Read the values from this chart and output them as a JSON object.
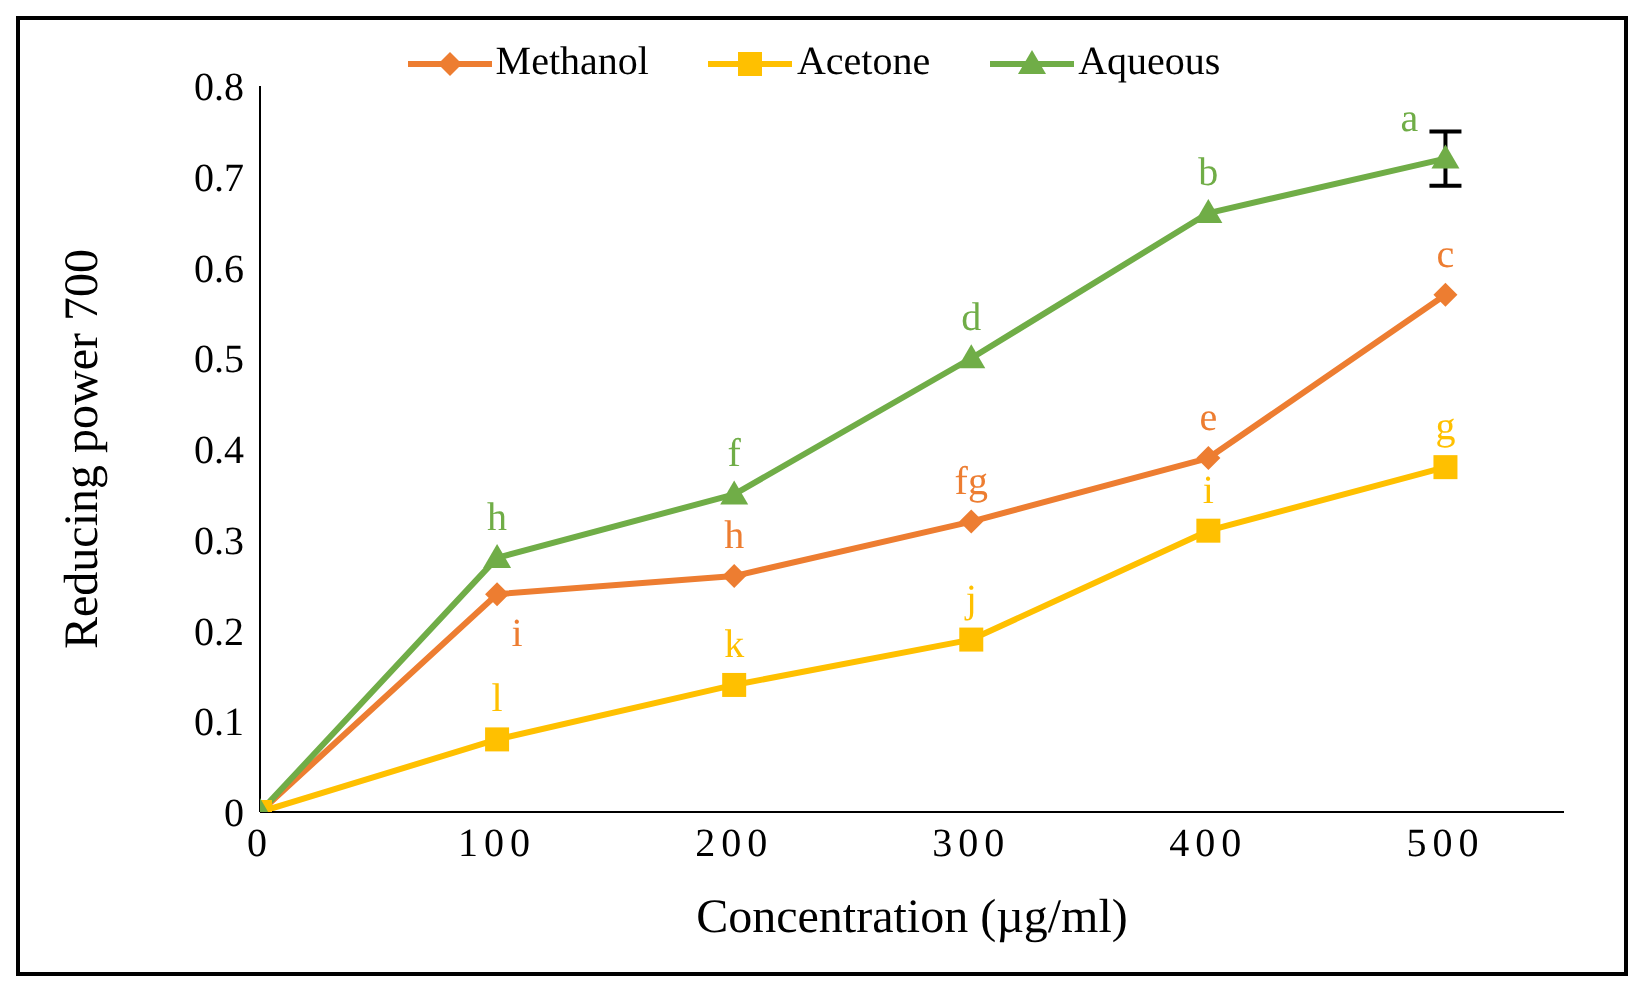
{
  "chart_data": {
    "type": "line",
    "xlabel": "Concentration  (µg/ml)",
    "ylabel": "Reducing  power  700",
    "x": [
      0,
      100,
      200,
      300,
      400,
      500
    ],
    "xlim": [
      0,
      550
    ],
    "xticks": [
      0,
      100,
      200,
      300,
      400,
      500
    ],
    "ylim": [
      0,
      0.8
    ],
    "yticks": [
      0,
      0.1,
      0.2,
      0.3,
      0.4,
      0.5,
      0.6,
      0.7,
      0.8
    ],
    "legend": "top",
    "grid": false,
    "series": [
      {
        "name": "Methanol",
        "color": "#ed7d31",
        "marker": "diamond",
        "values": [
          0,
          0.24,
          0.26,
          0.32,
          0.39,
          0.57
        ]
      },
      {
        "name": "Acetone",
        "color": "#ffc000",
        "marker": "square",
        "values": [
          0,
          0.08,
          0.14,
          0.19,
          0.31,
          0.38
        ]
      },
      {
        "name": "Aqueous",
        "color": "#70ad47",
        "marker": "triangle",
        "values": [
          0,
          0.28,
          0.35,
          0.5,
          0.66,
          0.72
        ],
        "errors": [
          null,
          null,
          null,
          null,
          null,
          0.03
        ]
      }
    ],
    "annotations": [
      {
        "text": "i",
        "x": 100,
        "y": 0.24
      },
      {
        "text": "h",
        "x": 200,
        "y": 0.26
      },
      {
        "text": "fg",
        "x": 300,
        "y": 0.32
      },
      {
        "text": "e",
        "x": 400,
        "y": 0.39
      },
      {
        "text": "c",
        "x": 500,
        "y": 0.57
      },
      {
        "text": "l",
        "x": 100,
        "y": 0.08
      },
      {
        "text": "k",
        "x": 200,
        "y": 0.14
      },
      {
        "text": "j",
        "x": 300,
        "y": 0.19
      },
      {
        "text": "i",
        "x": 400,
        "y": 0.31
      },
      {
        "text": "g",
        "x": 500,
        "y": 0.38
      },
      {
        "text": "h",
        "x": 100,
        "y": 0.28
      },
      {
        "text": "f",
        "x": 200,
        "y": 0.35
      },
      {
        "text": "d",
        "x": 300,
        "y": 0.5
      },
      {
        "text": "b",
        "x": 400,
        "y": 0.66
      },
      {
        "text": "a",
        "x": 500,
        "y": 0.72
      }
    ]
  }
}
